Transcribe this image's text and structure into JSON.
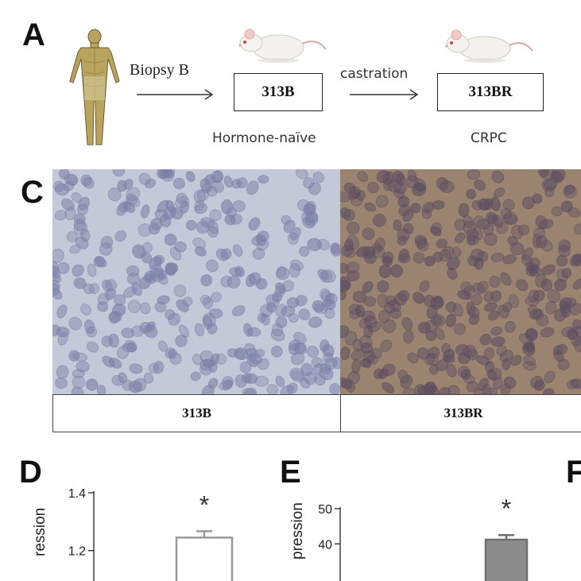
{
  "panel_a": {
    "letter": "A",
    "arrow1_label": "Biopsy B",
    "box1_label": "313B",
    "box1_sub": "Hormone-naïve",
    "arrow2_label": "castration",
    "box2_label": "313BR",
    "box2_sub": "CRPC"
  },
  "panel_c": {
    "letter": "C",
    "left_label": "313B",
    "right_label": "313BR",
    "colors": {
      "left_bg": "#c4c9d7",
      "left_nuclei": "#7c81a8",
      "right_bg": "#9a8470",
      "right_nuclei": "#5e4f62"
    }
  },
  "panel_d": {
    "letter": "D"
  },
  "panel_e": {
    "letter": "E"
  },
  "panel_f": {
    "letter": "F"
  },
  "chart_data": [
    {
      "type": "bar",
      "panel": "D",
      "ylabel": "ression",
      "ylim": [
        1.18,
        1.4
      ],
      "ticks": [
        1.2,
        1.4
      ],
      "tick_labels": [
        "1.2",
        "1.4"
      ],
      "bar_value": 1.245,
      "error": 0.022,
      "bar_fill": "#ffffff",
      "bar_stroke": "#999999",
      "significance": "*"
    },
    {
      "type": "bar",
      "panel": "E",
      "ylabel": "pression",
      "ylim": [
        36,
        50
      ],
      "ticks": [
        40,
        50
      ],
      "tick_labels": [
        "40",
        "50"
      ],
      "bar_value": 41.2,
      "error": 1.3,
      "bar_fill": "#8c8c8c",
      "bar_stroke": "#6f6f6f",
      "significance": "*"
    }
  ]
}
